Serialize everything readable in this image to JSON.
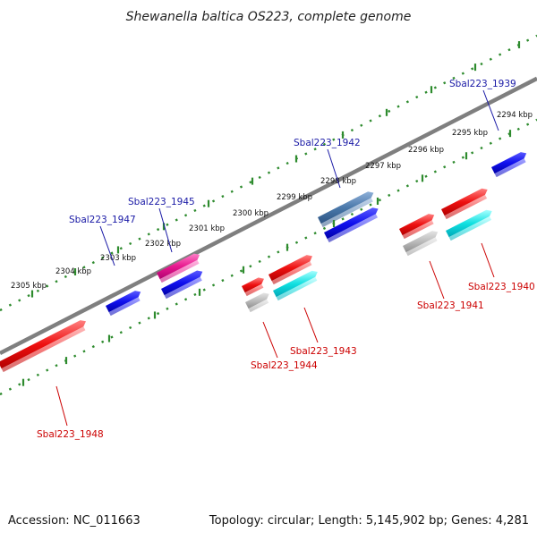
{
  "title": "Shewanella baltica OS223, complete genome",
  "footer": {
    "accession": "Accession: NC_011663",
    "summary": "Topology: circular; Length: 5,145,902 bp; Genes: 4,281"
  },
  "colors": {
    "background": "#ffffff",
    "backbone": "#7f7f7f",
    "ruler": "#2e8b2e",
    "forward_label": "#1a1aa6",
    "reverse_label": "#cc0000"
  },
  "ruler_ticks": [
    {
      "label": "2294 kbp"
    },
    {
      "label": "2295 kbp"
    },
    {
      "label": "2296 kbp"
    },
    {
      "label": "2297 kbp"
    },
    {
      "label": "2298 kbp"
    },
    {
      "label": "2299 kbp"
    },
    {
      "label": "2300 kbp"
    },
    {
      "label": "2301 kbp"
    },
    {
      "label": "2302 kbp"
    },
    {
      "label": "2303 kbp"
    },
    {
      "label": "2304 kbp"
    },
    {
      "label": "2305 kbp"
    }
  ],
  "gene_labels": [
    {
      "text": "Sbal223_1939",
      "strand": "forward"
    },
    {
      "text": "Sbal223_1942",
      "strand": "forward"
    },
    {
      "text": "Sbal223_1945",
      "strand": "forward"
    },
    {
      "text": "Sbal223_1947",
      "strand": "forward"
    },
    {
      "text": "Sbal223_1940",
      "strand": "reverse"
    },
    {
      "text": "Sbal223_1941",
      "strand": "reverse"
    },
    {
      "text": "Sbal223_1943",
      "strand": "reverse"
    },
    {
      "text": "Sbal223_1944",
      "strand": "reverse"
    },
    {
      "text": "Sbal223_1948",
      "strand": "reverse"
    }
  ],
  "feature_colors": [
    "blue",
    "steelblue",
    "magenta",
    "red",
    "cyan",
    "gray"
  ]
}
